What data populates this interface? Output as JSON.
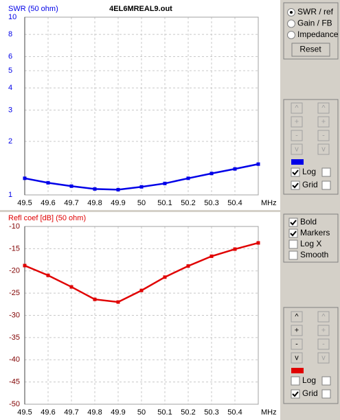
{
  "chart_data": [
    {
      "type": "line",
      "title": "4EL6MREAL9.out",
      "y_label": "SWR (50 ohm)",
      "x_unit": "MHz",
      "x": [
        49.5,
        49.6,
        49.7,
        49.8,
        49.9,
        50,
        50.1,
        50.2,
        50.3,
        50.4,
        50.5
      ],
      "series": [
        {
          "color": "#0000e8",
          "values": [
            1.24,
            1.17,
            1.12,
            1.08,
            1.07,
            1.11,
            1.16,
            1.24,
            1.32,
            1.4,
            1.49
          ]
        }
      ],
      "xlim": [
        49.5,
        50.5
      ],
      "xticks": [
        49.5,
        49.6,
        49.7,
        49.8,
        49.9,
        50,
        50.1,
        50.2,
        50.3,
        50.4
      ],
      "ylim": [
        1,
        10
      ],
      "yticks": [
        1,
        2,
        3,
        4,
        5,
        6,
        8,
        10
      ],
      "log_y": true,
      "grid": true,
      "markers": true,
      "bold": true
    },
    {
      "type": "line",
      "y_label": "Refl coef [dB] (50 ohm)",
      "x_unit": "MHz",
      "x": [
        49.5,
        49.6,
        49.7,
        49.8,
        49.9,
        50,
        50.1,
        50.2,
        50.3,
        50.4,
        50.5
      ],
      "series": [
        {
          "color": "#e00000",
          "values": [
            -18.8,
            -21.0,
            -23.6,
            -26.4,
            -27.0,
            -24.4,
            -21.4,
            -18.9,
            -16.7,
            -15.1,
            -13.7
          ]
        }
      ],
      "xlim": [
        49.5,
        50.5
      ],
      "xticks": [
        49.5,
        49.6,
        49.7,
        49.8,
        49.9,
        50,
        50.1,
        50.2,
        50.3,
        50.4
      ],
      "ylim": [
        -50,
        -10
      ],
      "yticks": [
        -10,
        -15,
        -20,
        -25,
        -30,
        -35,
        -40,
        -45,
        -50
      ],
      "log_y": false,
      "grid": true,
      "markers": true,
      "bold": true,
      "log_x": false,
      "smooth": false
    }
  ],
  "controls": {
    "view_options": [
      {
        "label": "SWR / ref",
        "selected": true
      },
      {
        "label": "Gain / FB",
        "selected": false
      },
      {
        "label": "Impedance",
        "selected": false
      }
    ],
    "reset": "Reset",
    "scale_buttons": [
      "^",
      "+",
      "-",
      "v"
    ],
    "log_label": "Log",
    "grid_label": "Grid",
    "bold_label": "Bold",
    "markers_label": "Markers",
    "log_x_label": "Log X",
    "smooth_label": "Smooth"
  }
}
